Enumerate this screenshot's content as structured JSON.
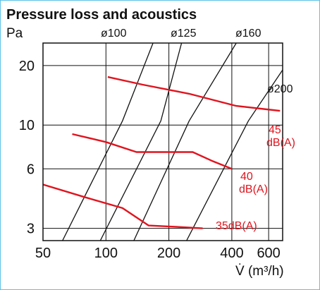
{
  "chart_data": {
    "type": "line",
    "title": "Pressure loss and acoustics",
    "ylabel": "Pa",
    "xlabel": "V̇ (m³/h)",
    "x_scale": "log",
    "y_scale": "log",
    "xlim": [
      50,
      700
    ],
    "ylim": [
      2.6,
      26
    ],
    "x_ticks": [
      {
        "value": 50,
        "label": "50"
      },
      {
        "value": 100,
        "label": "100"
      },
      {
        "value": 200,
        "label": "200"
      },
      {
        "value": 400,
        "label": "400"
      },
      {
        "value": 600,
        "label": "600"
      }
    ],
    "y_ticks": [
      {
        "value": 3,
        "label": "3"
      },
      {
        "value": 6,
        "label": "6"
      },
      {
        "value": 10,
        "label": "10"
      },
      {
        "value": 20,
        "label": "20"
      }
    ],
    "grid": true,
    "duct_lines": [
      {
        "name": "ø100",
        "points": [
          [
            62,
            2.6
          ],
          [
            120,
            10.5
          ],
          [
            168,
            26
          ]
        ]
      },
      {
        "name": "ø125",
        "points": [
          [
            94,
            2.6
          ],
          [
            183,
            10.5
          ],
          [
            230,
            26
          ]
        ]
      },
      {
        "name": "ø160",
        "points": [
          [
            136,
            2.6
          ],
          [
            250,
            10.5
          ],
          [
            420,
            26
          ]
        ]
      },
      {
        "name": "ø200",
        "points": [
          [
            243,
            2.6
          ],
          [
            480,
            10.5
          ],
          [
            700,
            19
          ]
        ]
      }
    ],
    "series": [
      {
        "name": "45 dB(A)",
        "color": "#e0141e",
        "points": [
          [
            102,
            17.5
          ],
          [
            150,
            16
          ],
          [
            250,
            14.4
          ],
          [
            420,
            12.5
          ],
          [
            680,
            11.8
          ]
        ]
      },
      {
        "name": "40 dB(A)",
        "color": "#e0141e",
        "points": [
          [
            69,
            9.0
          ],
          [
            100,
            8.2
          ],
          [
            140,
            7.3
          ],
          [
            180,
            7.3
          ],
          [
            260,
            7.3
          ],
          [
            320,
            6.6
          ],
          [
            400,
            6.0
          ]
        ]
      },
      {
        "name": "35 dB(A)",
        "color": "#e0141e",
        "points": [
          [
            50,
            5.0
          ],
          [
            80,
            4.3
          ],
          [
            120,
            3.8
          ],
          [
            160,
            3.1
          ],
          [
            220,
            3.05
          ],
          [
            290,
            3.0
          ]
        ]
      }
    ],
    "annotations": {
      "d100": "ø100",
      "d125": "ø125",
      "d160": "ø160",
      "d200": "ø200",
      "db45_value": "45",
      "db45_unit": "dB(A)",
      "db40_value": "40",
      "db40_unit": "dB(A)",
      "db35": "35dB(A)"
    }
  }
}
